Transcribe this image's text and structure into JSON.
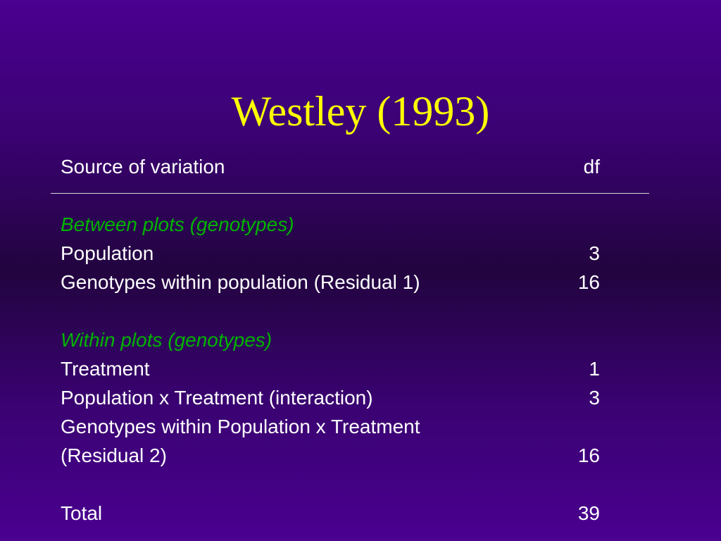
{
  "slide": {
    "title": "Westley (1993)"
  },
  "table": {
    "header": {
      "source": "Source of variation",
      "df": "df"
    },
    "sections": [
      {
        "heading": "Between plots (genotypes)",
        "rows": [
          {
            "label": "Population",
            "df": "3"
          },
          {
            "label": "Genotypes within population (Residual 1)",
            "df": "16"
          }
        ]
      },
      {
        "heading": "Within plots (genotypes)",
        "rows": [
          {
            "label": "Treatment",
            "df": "1"
          },
          {
            "label": "Population x Treatment (interaction)",
            "df": "3"
          },
          {
            "label": "Genotypes within Population x Treatment",
            "df": ""
          },
          {
            "label": "(Residual 2)",
            "df": "16"
          }
        ]
      }
    ],
    "total": {
      "label": "Total",
      "df": "39"
    }
  },
  "colors": {
    "title": "#ffff00",
    "section_heading": "#00b400",
    "text": "#ffffff",
    "background_top": "#4a0090",
    "background_mid": "#22043f"
  }
}
